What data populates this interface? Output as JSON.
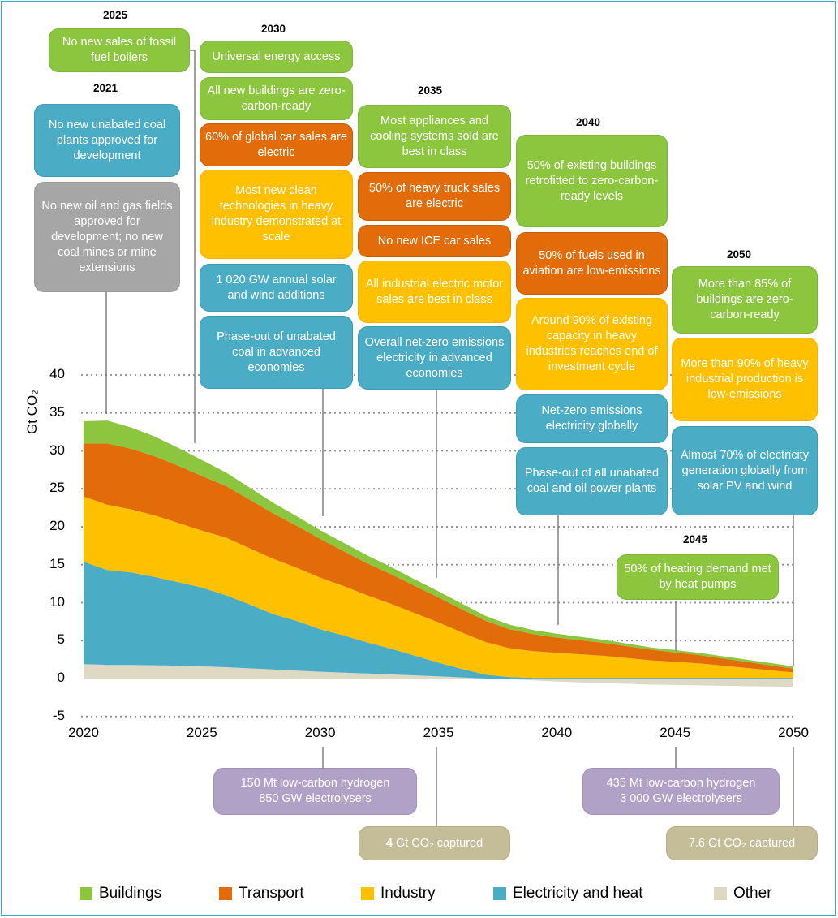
{
  "chart_data": {
    "type": "area",
    "ylabel": "Gt CO₂",
    "ylim": [
      -5,
      40
    ],
    "yticks": [
      -5,
      0,
      5,
      10,
      15,
      20,
      25,
      30,
      35,
      40
    ],
    "xticks": [
      2020,
      2025,
      2030,
      2035,
      2040,
      2045,
      2050
    ],
    "x": [
      2020,
      2021,
      2022,
      2023,
      2024,
      2025,
      2026,
      2027,
      2028,
      2029,
      2030,
      2031,
      2032,
      2033,
      2034,
      2035,
      2036,
      2037,
      2038,
      2039,
      2040,
      2041,
      2042,
      2043,
      2044,
      2045,
      2046,
      2047,
      2048,
      2049,
      2050
    ],
    "series": [
      {
        "name": "Other",
        "color": "#ddd9c3",
        "values": [
          1.9,
          1.8,
          1.8,
          1.75,
          1.7,
          1.6,
          1.5,
          1.35,
          1.2,
          1.05,
          0.9,
          0.78,
          0.66,
          0.54,
          0.42,
          0.3,
          0.15,
          0.0,
          -0.1,
          -0.25,
          -0.4,
          -0.5,
          -0.6,
          -0.7,
          -0.8,
          -0.85,
          -0.9,
          -0.95,
          -1.0,
          -1.05,
          -1.1
        ]
      },
      {
        "name": "Electricity and heat",
        "color": "#4bacc6",
        "values": [
          13.5,
          12.5,
          12.2,
          11.65,
          11.0,
          10.4,
          9.5,
          8.45,
          7.3,
          6.55,
          5.6,
          4.9,
          4.1,
          3.4,
          2.6,
          1.8,
          1.1,
          0.5,
          0.2,
          0.1,
          0.1,
          0.1,
          0.1,
          0.1,
          0.1,
          0.1,
          0.1,
          0.1,
          0.1,
          0.1,
          0.1
        ]
      },
      {
        "name": "Industry",
        "color": "#ffc000",
        "values": [
          8.6,
          8.6,
          8.3,
          8.1,
          7.8,
          7.5,
          7.6,
          7.4,
          7.3,
          7.0,
          6.8,
          6.5,
          6.2,
          5.9,
          5.6,
          5.3,
          4.8,
          4.3,
          3.8,
          3.5,
          3.3,
          3.1,
          2.9,
          2.6,
          2.3,
          2.1,
          1.9,
          1.6,
          1.3,
          1.0,
          0.7
        ]
      },
      {
        "name": "Transport",
        "color": "#e36c0a",
        "values": [
          7.0,
          8.1,
          8.0,
          7.8,
          7.55,
          7.2,
          6.8,
          6.4,
          6.0,
          5.55,
          5.1,
          4.6,
          4.2,
          3.9,
          3.6,
          3.3,
          3.05,
          2.8,
          2.5,
          2.25,
          2.0,
          1.85,
          1.7,
          1.55,
          1.4,
          1.25,
          1.1,
          0.95,
          0.8,
          0.65,
          0.5
        ]
      },
      {
        "name": "Buildings",
        "color": "#8cc63f",
        "values": [
          2.9,
          3.0,
          2.8,
          2.6,
          2.35,
          2.1,
          1.8,
          1.6,
          1.4,
          1.25,
          1.15,
          1.1,
          1.05,
          0.95,
          0.85,
          0.8,
          0.75,
          0.65,
          0.6,
          0.55,
          0.5,
          0.45,
          0.4,
          0.35,
          0.3,
          0.3,
          0.3,
          0.3,
          0.3,
          0.3,
          0.3
        ]
      }
    ],
    "legend_position": "bottom",
    "grid": "dotted horizontal",
    "annotations": {
      "years": {
        "y2025": "2025",
        "y2030": "2030",
        "y2021": "2021",
        "y2035": "2035",
        "y2040": "2040",
        "y2050": "2050",
        "y2045": "2045"
      },
      "milestones": {
        "m2025_boilers": "No new sales of fossil fuel boilers",
        "m2030_access": "Universal energy access",
        "m2030_buildings": "All new buildings are zero-carbon-ready",
        "m2030_cars": "60% of global car sales are electric",
        "m2030_industry": "Most new clean technologies in heavy industry demonstrated at scale",
        "m2030_solar": "1 020 GW annual solar and wind additions",
        "m2030_coal": "Phase-out of unabated coal in advanced economies",
        "m2021_coal": "No new unabated coal plants approved for development",
        "m2021_oil": "No new oil and gas fields approved for development; no new coal mines or mine extensions",
        "m2035_appliances": "Most appliances and cooling systems sold are best in class",
        "m2035_truck": "50% of heavy truck sales are electric",
        "m2035_ice": "No new ICE car sales",
        "m2035_motors": "All industrial electric motor sales are best in class",
        "m2035_elec": "Overall net-zero emissions electricity in advanced economies",
        "m2040_retrofit": "50% of existing buildings retrofitted to zero-carbon-ready levels",
        "m2040_aviation": "50% of fuels used in aviation are low-emissions",
        "m2040_capacity": "Around 90% of existing capacity in heavy industries reaches end of investment cycle",
        "m2040_netzero": "Net-zero emissions electricity globally",
        "m2040_phaseout": "Phase-out of all unabated coal and oil power plants",
        "m2050_buildings": "More than 85% of buildings are zero-carbon-ready",
        "m2050_industry": "More than 90% of heavy industrial production is low-emissions",
        "m2050_solar": "Almost 70% of electricity generation globally from solar PV and wind",
        "m2045_heat": "50% of heating demand met by heat pumps",
        "h2030": "150 Mt low-carbon hydrogen\n850 GW electrolysers",
        "h2045": "435 Mt low-carbon hydrogen\n3 000 GW electrolysers",
        "c2035_value": "4",
        "c2035_unit": " Gt CO₂ captured",
        "c2050": "7.6 Gt CO₂ captured"
      }
    }
  },
  "legend": {
    "buildings": "Buildings",
    "transport": "Transport",
    "industry": "Industry",
    "electricity": "Electricity and heat",
    "other": "Other"
  },
  "colors": {
    "buildings": "#8cc63f",
    "transport": "#e36c0a",
    "industry": "#ffc000",
    "electricity": "#4bacc6",
    "other": "#ddd9c3",
    "hydrogen": "#b2a1c7",
    "capture": "#c4bd97",
    "oil_gas": "#a6a6a6"
  }
}
